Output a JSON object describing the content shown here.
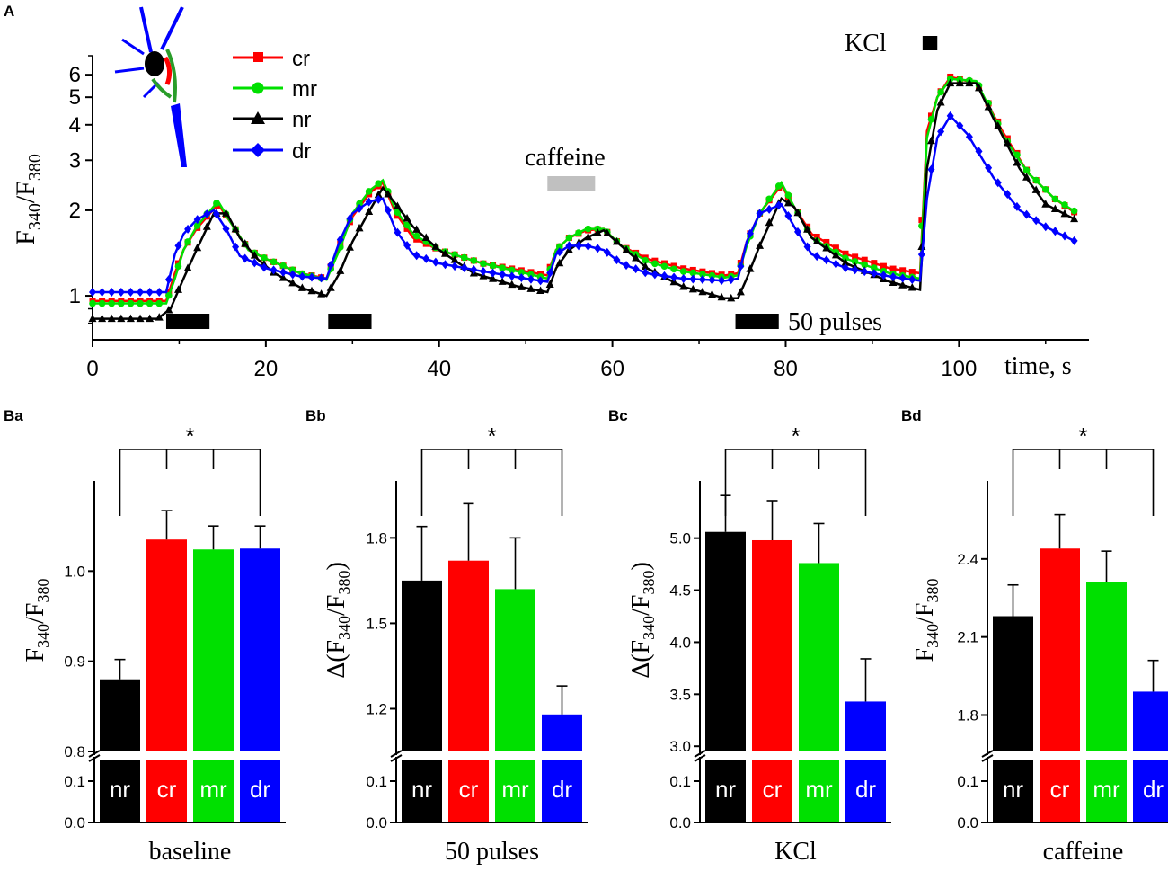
{
  "panel_labels": {
    "a": "A",
    "ba": "Ba",
    "bb": "Bb",
    "bc": "Bc",
    "bd": "Bd"
  },
  "colors": {
    "cr": "#ff0000",
    "mr": "#00e000",
    "nr": "#000000",
    "dr": "#0000ff",
    "caffeine_bar": "#c0c0c0",
    "stim_bar": "#000000"
  },
  "chart_data": [
    {
      "id": "A",
      "type": "line",
      "xlabel": "time, s",
      "ylabel_main": "F",
      "ylabel_num_sub": "340",
      "ylabel_den_sub": "380",
      "yscale": "log",
      "xlim": [
        0,
        115
      ],
      "ylim": [
        0.7,
        7.0
      ],
      "xticks": [
        0,
        20,
        40,
        60,
        80,
        100
      ],
      "yticks": [
        1,
        2,
        3,
        4,
        5,
        6
      ],
      "legend_location": "top-left",
      "annotations": {
        "caffeine": "caffeine",
        "kcl": "KCl",
        "pulses": "50 pulses"
      },
      "stim_bars": [
        [
          8.5,
          13.5
        ],
        [
          27.2,
          32.2
        ],
        [
          74.2,
          79.2
        ]
      ],
      "caffeine_bar": [
        52.5,
        58
      ],
      "kcl_bar": [
        95.8,
        97.5
      ],
      "series": [
        {
          "name": "cr",
          "marker": "square",
          "points": [
            [
              0,
              0.96
            ],
            [
              8.5,
              0.96
            ],
            [
              9.5,
              1.2
            ],
            [
              10.5,
              1.45
            ],
            [
              12,
              1.72
            ],
            [
              14.5,
              2.1
            ],
            [
              16,
              1.8
            ],
            [
              18,
              1.45
            ],
            [
              20,
              1.35
            ],
            [
              24,
              1.2
            ],
            [
              27,
              1.15
            ],
            [
              28.5,
              1.5
            ],
            [
              30,
              1.9
            ],
            [
              32,
              2.3
            ],
            [
              33.5,
              2.5
            ],
            [
              35,
              1.95
            ],
            [
              37,
              1.6
            ],
            [
              40,
              1.45
            ],
            [
              45,
              1.3
            ],
            [
              50,
              1.22
            ],
            [
              52.5,
              1.18
            ],
            [
              53.5,
              1.45
            ],
            [
              55,
              1.6
            ],
            [
              57,
              1.7
            ],
            [
              59,
              1.72
            ],
            [
              61,
              1.5
            ],
            [
              64,
              1.35
            ],
            [
              68,
              1.25
            ],
            [
              73,
              1.18
            ],
            [
              74.5,
              1.2
            ],
            [
              75.5,
              1.55
            ],
            [
              77,
              1.95
            ],
            [
              79.5,
              2.45
            ],
            [
              81,
              2.05
            ],
            [
              83,
              1.65
            ],
            [
              87,
              1.4
            ],
            [
              92,
              1.25
            ],
            [
              95.5,
              1.2
            ],
            [
              96.3,
              3.8
            ],
            [
              97.5,
              5.0
            ],
            [
              99,
              5.9
            ],
            [
              102,
              5.6
            ],
            [
              105,
              3.8
            ],
            [
              108,
              2.7
            ],
            [
              111,
              2.2
            ],
            [
              113.5,
              1.95
            ]
          ]
        },
        {
          "name": "mr",
          "marker": "circle",
          "points": [
            [
              0,
              0.94
            ],
            [
              8.5,
              0.94
            ],
            [
              9.5,
              1.15
            ],
            [
              10.5,
              1.45
            ],
            [
              12,
              1.75
            ],
            [
              14.5,
              2.15
            ],
            [
              16,
              1.8
            ],
            [
              18,
              1.45
            ],
            [
              20,
              1.35
            ],
            [
              24,
              1.2
            ],
            [
              27,
              1.14
            ],
            [
              28.5,
              1.45
            ],
            [
              30,
              1.95
            ],
            [
              32,
              2.35
            ],
            [
              33.5,
              2.55
            ],
            [
              35,
              2.0
            ],
            [
              37,
              1.65
            ],
            [
              40,
              1.45
            ],
            [
              45,
              1.3
            ],
            [
              50,
              1.2
            ],
            [
              52.5,
              1.15
            ],
            [
              53.5,
              1.45
            ],
            [
              55,
              1.6
            ],
            [
              57,
              1.72
            ],
            [
              59,
              1.72
            ],
            [
              61,
              1.5
            ],
            [
              64,
              1.32
            ],
            [
              68,
              1.22
            ],
            [
              73,
              1.16
            ],
            [
              74.5,
              1.18
            ],
            [
              75.5,
              1.5
            ],
            [
              77,
              1.95
            ],
            [
              79.5,
              2.5
            ],
            [
              81,
              2.05
            ],
            [
              83,
              1.6
            ],
            [
              87,
              1.35
            ],
            [
              92,
              1.2
            ],
            [
              95.5,
              1.15
            ],
            [
              96.3,
              3.6
            ],
            [
              97.5,
              5.0
            ],
            [
              99,
              5.8
            ],
            [
              102,
              5.7
            ],
            [
              105,
              3.7
            ],
            [
              108,
              2.7
            ],
            [
              111,
              2.2
            ],
            [
              113.5,
              1.97
            ]
          ]
        },
        {
          "name": "nr",
          "marker": "triangle",
          "points": [
            [
              0,
              0.83
            ],
            [
              7.5,
              0.83
            ],
            [
              9,
              0.9
            ],
            [
              10.5,
              1.15
            ],
            [
              12,
              1.45
            ],
            [
              14,
              1.95
            ],
            [
              15.5,
              1.95
            ],
            [
              17,
              1.6
            ],
            [
              19,
              1.35
            ],
            [
              21,
              1.2
            ],
            [
              24,
              1.07
            ],
            [
              27,
              1.0
            ],
            [
              28.5,
              1.2
            ],
            [
              30,
              1.55
            ],
            [
              32,
              2.0
            ],
            [
              33.5,
              2.4
            ],
            [
              35,
              2.1
            ],
            [
              37,
              1.75
            ],
            [
              40,
              1.45
            ],
            [
              44,
              1.2
            ],
            [
              49,
              1.08
            ],
            [
              52.5,
              1.03
            ],
            [
              53.5,
              1.25
            ],
            [
              55,
              1.45
            ],
            [
              57,
              1.6
            ],
            [
              59,
              1.7
            ],
            [
              61,
              1.5
            ],
            [
              64,
              1.25
            ],
            [
              68,
              1.08
            ],
            [
              73,
              0.98
            ],
            [
              74.5,
              0.98
            ],
            [
              75.5,
              1.15
            ],
            [
              77,
              1.5
            ],
            [
              79.5,
              2.2
            ],
            [
              81,
              2.05
            ],
            [
              83,
              1.6
            ],
            [
              87,
              1.3
            ],
            [
              92,
              1.12
            ],
            [
              95.5,
              1.05
            ],
            [
              96.3,
              2.8
            ],
            [
              97.5,
              4.5
            ],
            [
              99,
              5.6
            ],
            [
              102,
              5.6
            ],
            [
              104,
              4.2
            ],
            [
              107,
              2.8
            ],
            [
              110,
              2.1
            ],
            [
              113.5,
              1.85
            ]
          ]
        },
        {
          "name": "dr",
          "marker": "diamond",
          "points": [
            [
              0,
              1.03
            ],
            [
              8.5,
              1.03
            ],
            [
              9.5,
              1.4
            ],
            [
              10.5,
              1.65
            ],
            [
              12,
              1.85
            ],
            [
              14,
              2.0
            ],
            [
              15.5,
              1.7
            ],
            [
              17,
              1.38
            ],
            [
              20,
              1.25
            ],
            [
              24,
              1.17
            ],
            [
              27,
              1.15
            ],
            [
              28.5,
              1.55
            ],
            [
              30,
              1.95
            ],
            [
              32,
              2.15
            ],
            [
              33.5,
              2.2
            ],
            [
              35,
              1.7
            ],
            [
              37,
              1.4
            ],
            [
              40,
              1.3
            ],
            [
              45,
              1.22
            ],
            [
              50,
              1.15
            ],
            [
              52.5,
              1.12
            ],
            [
              53.5,
              1.4
            ],
            [
              55,
              1.5
            ],
            [
              57,
              1.5
            ],
            [
              59,
              1.45
            ],
            [
              61,
              1.3
            ],
            [
              64,
              1.2
            ],
            [
              68,
              1.15
            ],
            [
              73,
              1.13
            ],
            [
              74.5,
              1.15
            ],
            [
              75.5,
              1.55
            ],
            [
              77,
              1.95
            ],
            [
              79.5,
              2.1
            ],
            [
              81,
              1.75
            ],
            [
              83,
              1.4
            ],
            [
              87,
              1.25
            ],
            [
              92,
              1.17
            ],
            [
              95.5,
              1.13
            ],
            [
              96.3,
              2.2
            ],
            [
              97.5,
              3.6
            ],
            [
              99,
              4.3
            ],
            [
              101,
              3.7
            ],
            [
              104,
              2.6
            ],
            [
              107,
              2.0
            ],
            [
              110,
              1.75
            ],
            [
              113.5,
              1.55
            ]
          ]
        }
      ]
    },
    {
      "id": "Ba",
      "type": "bar",
      "xlabel": "baseline",
      "ylabel_prefix": "",
      "ylabel_main": "F",
      "ylabel_num_sub": "340",
      "ylabel_den_sub": "380",
      "categories": [
        "nr",
        "cr",
        "mr",
        "dr"
      ],
      "values": [
        0.88,
        1.035,
        1.024,
        1.025
      ],
      "errors": [
        0.022,
        0.032,
        0.026,
        0.025
      ],
      "ylim": [
        0.8,
        1.1
      ],
      "yticks": [
        "0.8",
        "0.9",
        "1.0"
      ],
      "lower_ylim": [
        0,
        0.15
      ],
      "lower_yticks": [
        "0.0",
        "0.1"
      ],
      "significance": "*"
    },
    {
      "id": "Bb",
      "type": "bar",
      "xlabel": "50 pulses",
      "ylabel_prefix": "Δ(",
      "ylabel_main": "F",
      "ylabel_num_sub": "340",
      "ylabel_den_sub": "380",
      "ylabel_suffix": ")",
      "categories": [
        "nr",
        "cr",
        "mr",
        "dr"
      ],
      "values": [
        1.65,
        1.72,
        1.62,
        1.18
      ],
      "errors": [
        0.19,
        0.2,
        0.18,
        0.1
      ],
      "ylim": [
        1.05,
        2.0
      ],
      "yticks": [
        "1.2",
        "1.5",
        "1.8"
      ],
      "lower_ylim": [
        0,
        0.15
      ],
      "lower_yticks": [
        "0.0",
        "0.1"
      ],
      "significance": "*"
    },
    {
      "id": "Bc",
      "type": "bar",
      "xlabel": "KCl",
      "ylabel_prefix": "Δ(",
      "ylabel_main": "F",
      "ylabel_num_sub": "340",
      "ylabel_den_sub": "380",
      "ylabel_suffix": ")",
      "categories": [
        "nr",
        "cr",
        "mr",
        "dr"
      ],
      "values": [
        5.06,
        4.98,
        4.76,
        3.43
      ],
      "errors": [
        0.35,
        0.38,
        0.38,
        0.41
      ],
      "ylim": [
        2.95,
        5.55
      ],
      "yticks": [
        "3.0",
        "3.5",
        "4.0",
        "4.5",
        "5.0"
      ],
      "lower_ylim": [
        0,
        0.15
      ],
      "lower_yticks": [
        "0.0",
        "0.1"
      ],
      "significance": "*"
    },
    {
      "id": "Bd",
      "type": "bar",
      "xlabel": "caffeine",
      "ylabel_prefix": "",
      "ylabel_main": "F",
      "ylabel_num_sub": "340",
      "ylabel_den_sub": "380",
      "categories": [
        "nr",
        "cr",
        "mr",
        "dr"
      ],
      "values": [
        2.18,
        2.44,
        2.31,
        1.89
      ],
      "errors": [
        0.12,
        0.13,
        0.12,
        0.12
      ],
      "ylim": [
        1.66,
        2.7
      ],
      "yticks": [
        "1.8",
        "2.1",
        "2.4"
      ],
      "lower_ylim": [
        0,
        0.15
      ],
      "lower_yticks": [
        "0.0",
        "0.1"
      ],
      "significance": "*"
    }
  ]
}
